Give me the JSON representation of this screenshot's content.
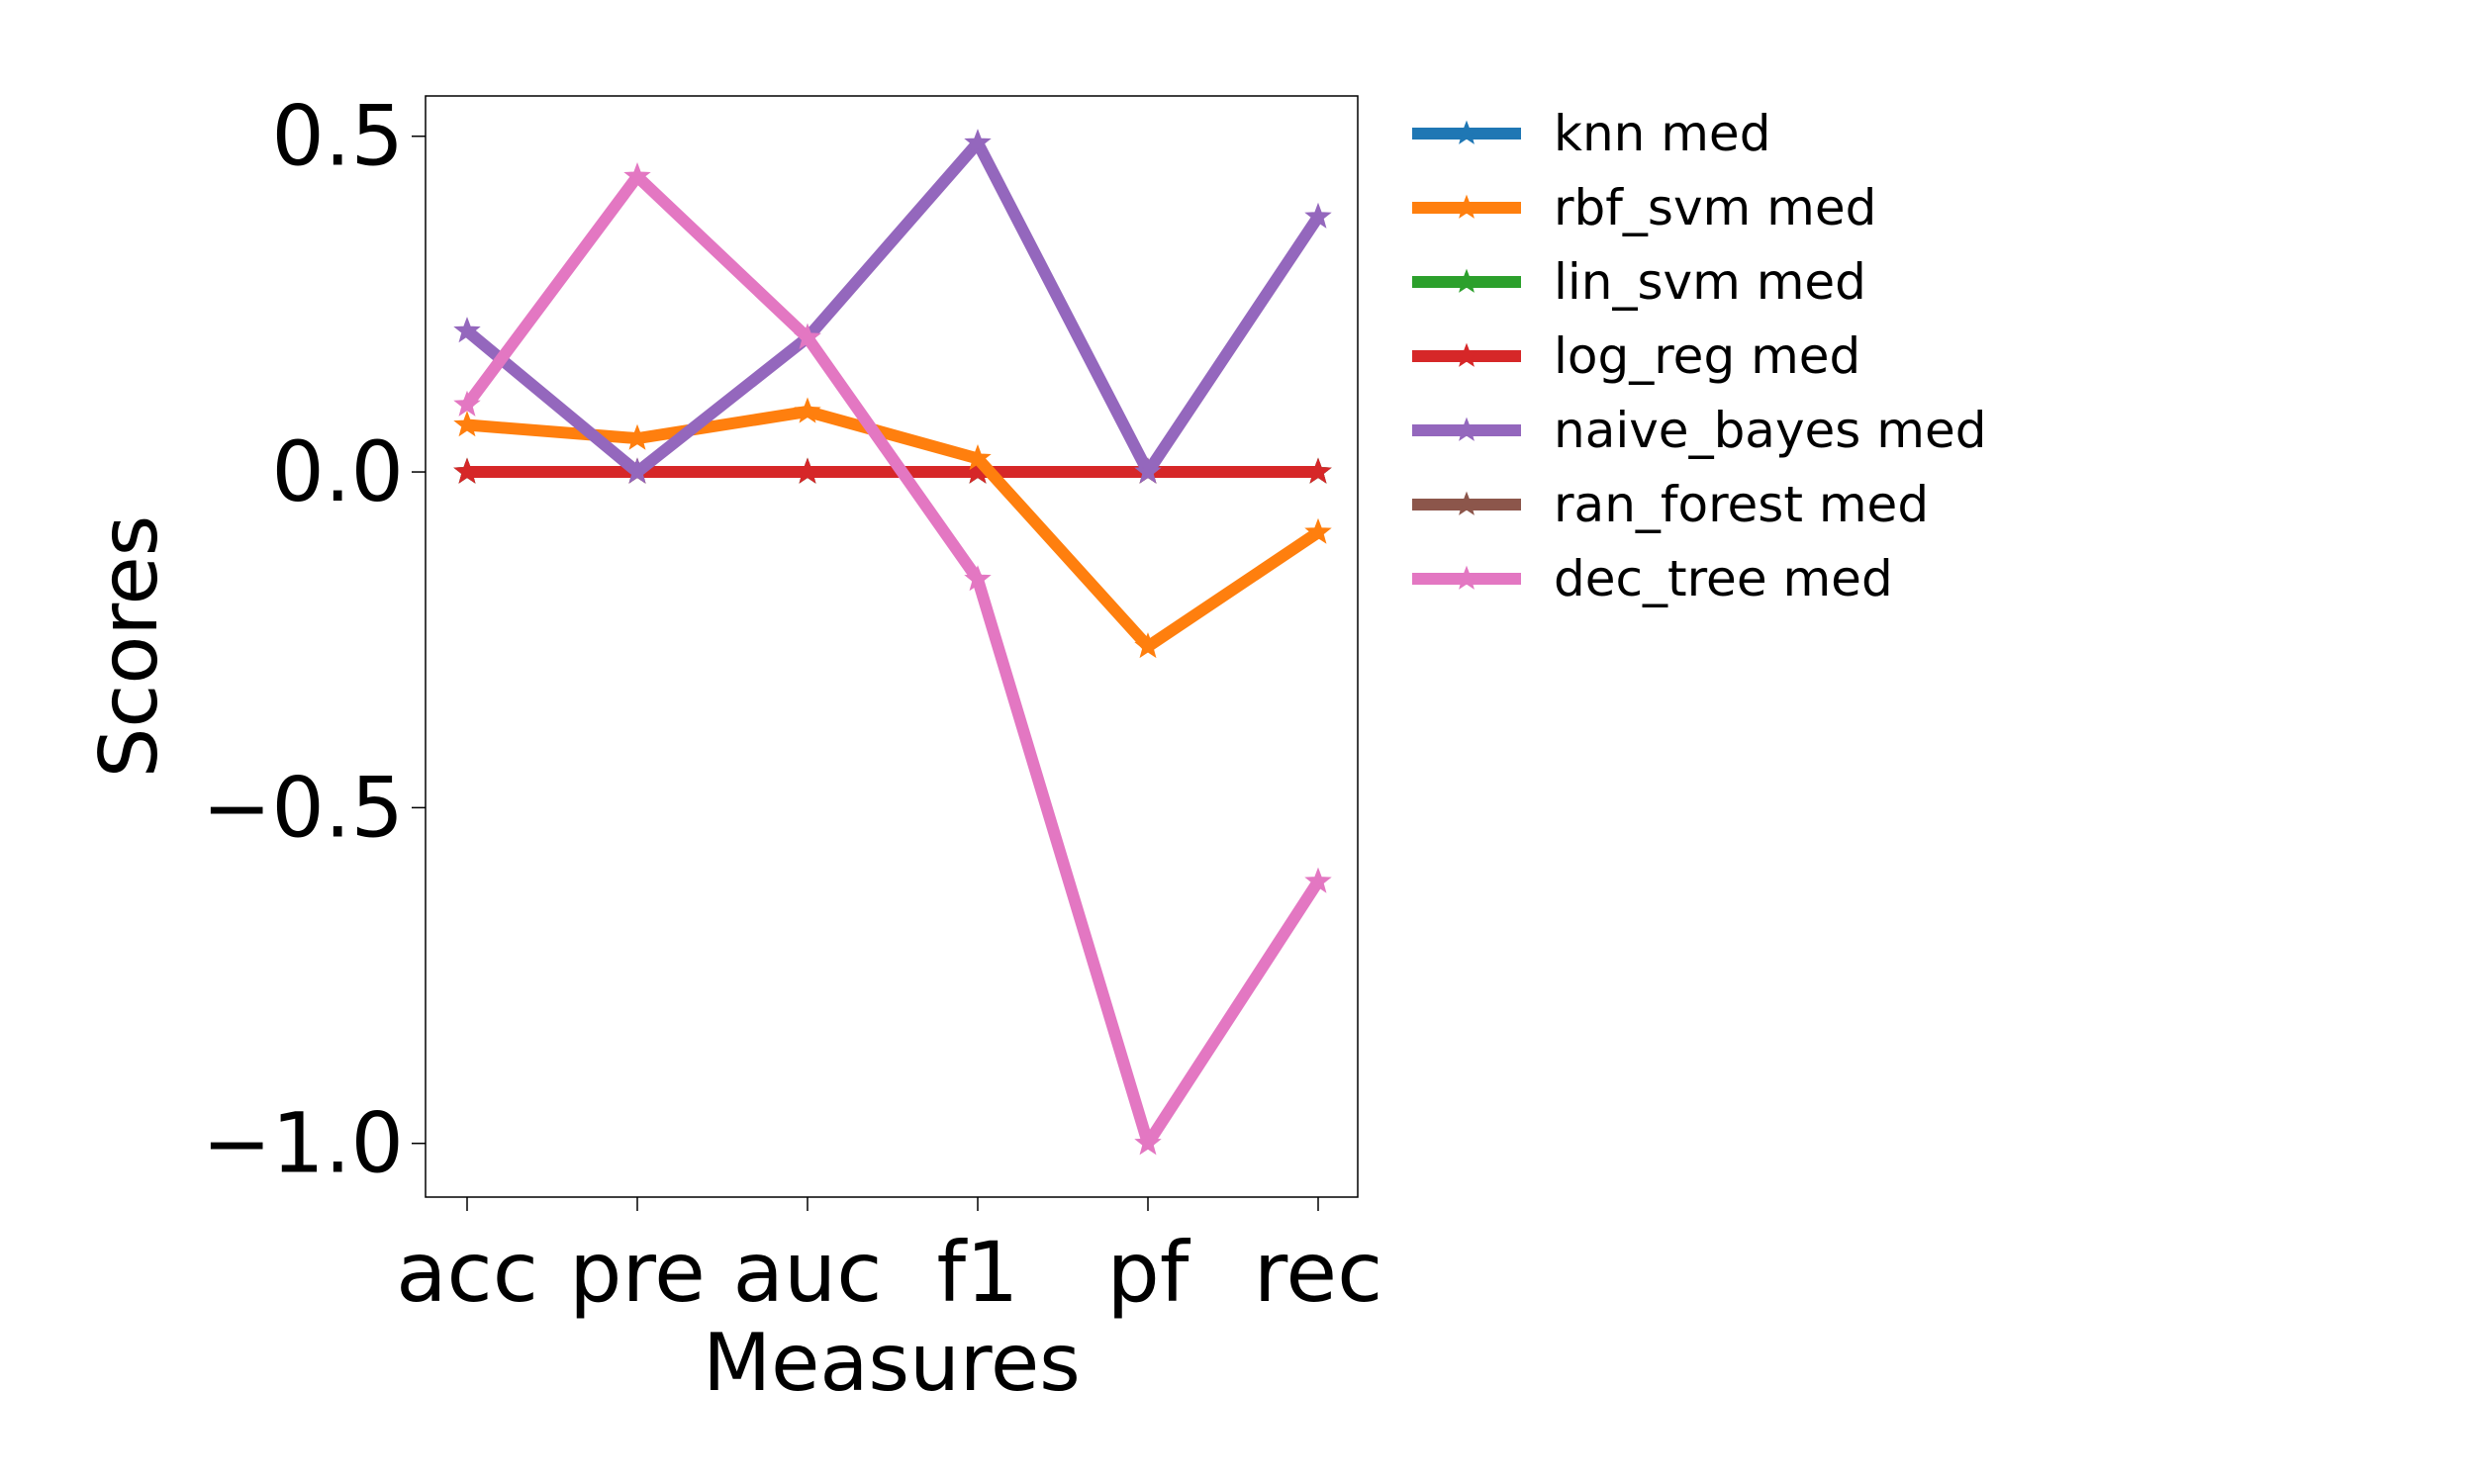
{
  "chart_data": {
    "type": "line",
    "title": "",
    "xlabel": "Measures",
    "ylabel": "Scores",
    "categories": [
      "acc",
      "pre",
      "auc",
      "f1",
      "pf",
      "rec"
    ],
    "ylim": [
      -1.08,
      0.56
    ],
    "yticks": [
      0.5,
      0.0,
      -0.5,
      -1.0
    ],
    "ytick_labels": [
      "0.5",
      "0.0",
      "−0.5",
      "−1.0"
    ],
    "grid": false,
    "legend_placement": "outside upper right",
    "marker": "star",
    "series": [
      {
        "name": "knn med",
        "color": "#1f77b4",
        "values": [
          0,
          0,
          0,
          0,
          0,
          0
        ]
      },
      {
        "name": "rbf_svm med",
        "color": "#ff7f0e",
        "values": [
          0.07,
          0.05,
          0.09,
          0.02,
          -0.26,
          -0.09
        ]
      },
      {
        "name": "lin_svm med",
        "color": "#2ca02c",
        "values": [
          0,
          0,
          0,
          0,
          0,
          0
        ]
      },
      {
        "name": "log_reg med",
        "color": "#d62728",
        "values": [
          0,
          0,
          0,
          0,
          0,
          0
        ]
      },
      {
        "name": "naive_bayes med",
        "color": "#9467bd",
        "values": [
          0.21,
          0.0,
          0.2,
          0.49,
          0.0,
          0.38
        ]
      },
      {
        "name": "ran_forest med",
        "color": "#8c564b",
        "values": [
          0,
          0,
          0,
          0,
          0,
          0
        ]
      },
      {
        "name": "dec_tree med",
        "color": "#e377c2",
        "values": [
          0.1,
          0.44,
          0.2,
          -0.16,
          -1.0,
          -0.61
        ]
      }
    ],
    "draw_order": [
      0,
      2,
      5,
      3,
      1,
      4,
      6
    ]
  }
}
